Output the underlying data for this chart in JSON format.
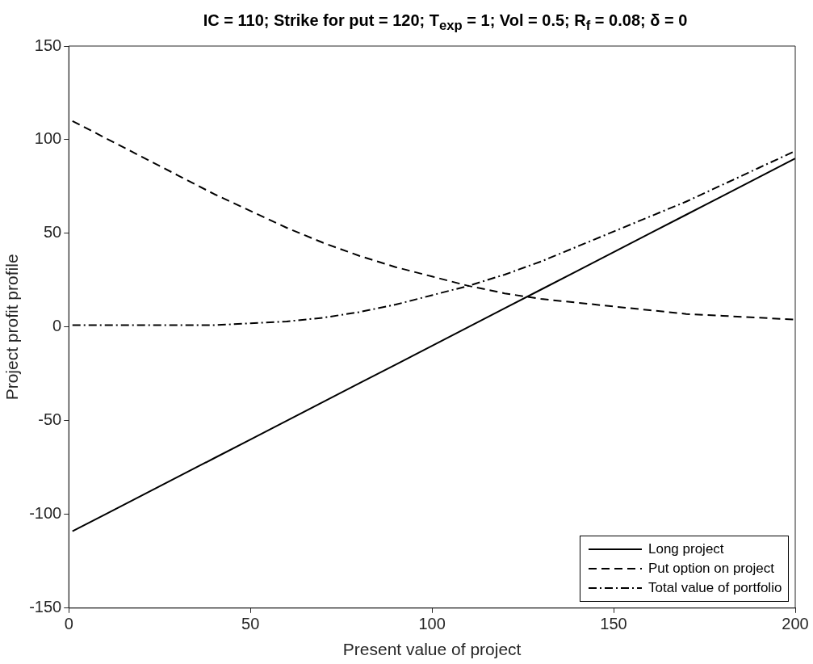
{
  "chart_data": {
    "type": "line",
    "title": "IC = 110; Strike for put = 120; T$_{exp}$ = 1; Vol = 0.5; R$_{f}$ = 0.08; δ = 0",
    "xlabel": "Present value of project",
    "ylabel": "Project profit profile",
    "x": [
      1,
      10,
      20,
      30,
      40,
      50,
      60,
      70,
      80,
      90,
      100,
      110,
      120,
      130,
      140,
      150,
      160,
      170,
      180,
      190,
      200
    ],
    "series": [
      {
        "name": "Long project",
        "color": "#000000",
        "line_style": "solid",
        "values": [
          -109,
          -100,
          -90,
          -80,
          -70,
          -60,
          -50,
          -40,
          -30,
          -20,
          -10,
          0,
          10,
          20,
          30,
          40,
          50,
          60,
          70,
          80,
          90
        ]
      },
      {
        "name": "Put option on project",
        "color": "#000000",
        "line_style": "dashed",
        "values": [
          110,
          101,
          91,
          81,
          71,
          62,
          53,
          45,
          38,
          32,
          27,
          22,
          18,
          15,
          13,
          11,
          9,
          7,
          6,
          5,
          4
        ]
      },
      {
        "name": "Total value of portfolio",
        "color": "#000000",
        "line_style": "dashdot",
        "values": [
          1,
          1,
          1,
          1,
          1,
          2,
          3,
          5,
          8,
          12,
          17,
          22,
          28,
          35,
          43,
          51,
          59,
          67,
          76,
          85,
          94
        ]
      }
    ],
    "xlim": [
      0,
      200
    ],
    "xticks": [
      0,
      50,
      100,
      150,
      200
    ],
    "ylim": [
      -150,
      150
    ],
    "yticks": [
      -150,
      -100,
      -50,
      0,
      50,
      100,
      150
    ],
    "grid": false,
    "legend": "bottom right",
    "marker": "none"
  }
}
